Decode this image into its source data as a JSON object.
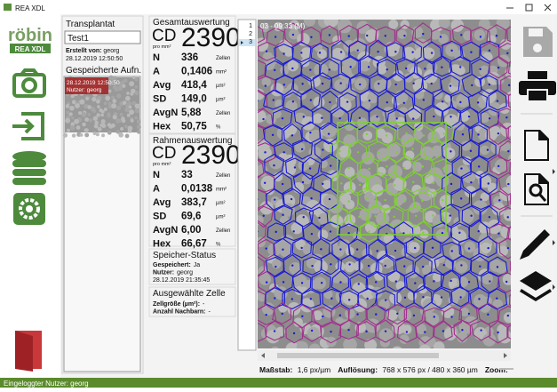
{
  "window": {
    "title": "REA XDL"
  },
  "logo": {
    "name": "röbin",
    "product": "REA XDL"
  },
  "transplant": {
    "heading": "Transplantat",
    "name": "Test1",
    "created_by_label": "Erstellt von:",
    "created_by": "georg",
    "created_at": "28.12.2019 12:50:50",
    "saved_heading": "Gespeicherte Aufn.",
    "thumbnail": {
      "date": "28.12.2019 12:50:50",
      "user": "Nutzer: georg"
    }
  },
  "overall": {
    "heading": "Gesamtauswertung",
    "cd_label": "CD",
    "cd_unit": "pro mm²",
    "cd": "2390",
    "rows": [
      [
        "N",
        "336",
        "Zellen"
      ],
      [
        "A",
        "0,1406",
        "mm²"
      ],
      [
        "Avg",
        "418,4",
        "µm²"
      ],
      [
        "SD",
        "149,0",
        "µm²"
      ],
      [
        "AvgN",
        "5,88",
        "Zellen"
      ],
      [
        "Hex",
        "50,75",
        "%"
      ]
    ]
  },
  "frame": {
    "heading": "Rahmenauswertung",
    "cd_label": "CD",
    "cd_unit": "pro mm²",
    "cd": "2390",
    "rows": [
      [
        "N",
        "33",
        "Zellen"
      ],
      [
        "A",
        "0,0138",
        "mm²"
      ],
      [
        "Avg",
        "383,7",
        "µm²"
      ],
      [
        "SD",
        "69,6",
        "µm²"
      ],
      [
        "AvgN",
        "6,00",
        "Zellen"
      ],
      [
        "Hex",
        "66,67",
        "%"
      ]
    ]
  },
  "storage": {
    "heading": "Speicher-Status",
    "rows": [
      [
        "Gespeichert:",
        "Ja"
      ],
      [
        "Nutzer:",
        "georg"
      ]
    ],
    "timestamp": "28.12.2019 21:35:45"
  },
  "selected": {
    "heading": "Ausgewählte Zelle",
    "rows": [
      [
        "Zellgröße (µm²):",
        "-"
      ],
      [
        "Anzahl Nachbarn:",
        "-"
      ]
    ]
  },
  "image_list": [
    "1",
    "2",
    "3"
  ],
  "image": {
    "caption": "03 - 09:33 (M)"
  },
  "footer": {
    "scale_label": "Maßstab:",
    "scale": "1,6 px/µm",
    "resolution_label": "Auflösung:",
    "resolution": "768 x 576 px / 480 x 360 µm",
    "zoom_label": "Zoom:"
  },
  "status": "Eingeloggter Nutzer: georg"
}
